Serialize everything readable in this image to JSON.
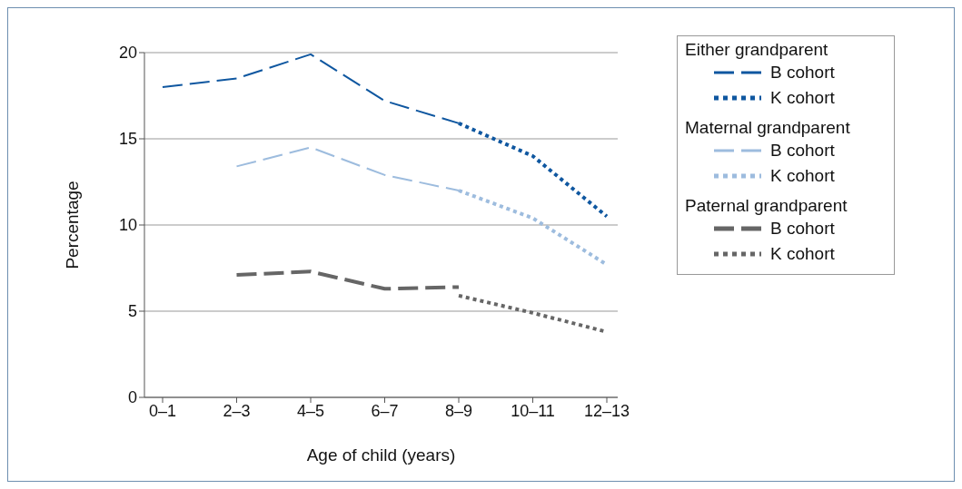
{
  "chart_data": {
    "type": "line",
    "xlabel": "Age of child (years)",
    "ylabel": "Percentage",
    "categories": [
      "0–1",
      "2–3",
      "4–5",
      "6–7",
      "8–9",
      "10–11",
      "12–13"
    ],
    "ylim": [
      0,
      20
    ],
    "yticks": [
      0,
      5,
      10,
      15,
      20
    ],
    "grid": "y",
    "legend": "right",
    "marker": "none",
    "annotations": [
      "Either grandparent",
      "Maternal grandparent",
      "Paternal grandparent"
    ],
    "series": [
      {
        "name": "B cohort",
        "color": "#0f57a0",
        "line_style": "dashed",
        "values": [
          18,
          18.5,
          19.9,
          17.2,
          15.9,
          null,
          null
        ]
      },
      {
        "name": "K cohort",
        "color": "#0f57a0",
        "line_style": "dotted",
        "values": [
          null,
          null,
          null,
          null,
          15.9,
          14,
          10.5
        ]
      },
      {
        "name": "B cohort",
        "color": "#9dbcde",
        "line_style": "dashed",
        "values": [
          null,
          13.4,
          14.5,
          12.9,
          12,
          null,
          null
        ]
      },
      {
        "name": "K cohort",
        "color": "#9dbcde",
        "line_style": "dotted",
        "values": [
          null,
          null,
          null,
          null,
          12,
          10.4,
          7.7
        ]
      },
      {
        "name": "B cohort",
        "color": "#666666",
        "line_style": "dashed",
        "values": [
          null,
          7.1,
          7.3,
          6.3,
          6.4,
          null,
          null
        ]
      },
      {
        "name": "K cohort",
        "color": "#666666",
        "line_style": "dotted",
        "values": [
          null,
          null,
          null,
          null,
          5.9,
          4.9,
          3.8
        ]
      }
    ]
  }
}
